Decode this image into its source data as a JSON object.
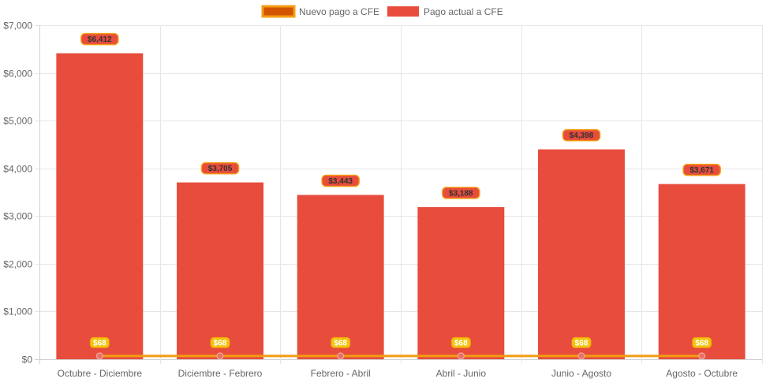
{
  "chart_data": {
    "type": "bar",
    "categories": [
      "Octubre - Diciembre",
      "Diciembre - Febrero",
      "Febrero - Abril",
      "Abril - Junio",
      "Junio - Agosto",
      "Agosto - Octubre"
    ],
    "series": [
      {
        "name": "Nuevo pago a CFE",
        "type": "line",
        "values": [
          68,
          68,
          68,
          68,
          68,
          68
        ],
        "data_labels": [
          "$68",
          "$68",
          "$68",
          "$68",
          "$68",
          "$68"
        ],
        "color": "#f39c12",
        "legend_fill": "#d35400"
      },
      {
        "name": "Pago actual a CFE",
        "type": "bar",
        "values": [
          6412,
          3705,
          3443,
          3188,
          4398,
          3671
        ],
        "data_labels": [
          "$6,412",
          "$3,705",
          "$3,443",
          "$3,188",
          "$4,398",
          "$3,671"
        ],
        "color": "#e74c3c"
      }
    ],
    "ylim": [
      0,
      7000
    ],
    "yticks": [
      0,
      1000,
      2000,
      3000,
      4000,
      5000,
      6000,
      7000
    ],
    "ytick_labels": [
      "$0",
      "$1,000",
      "$2,000",
      "$3,000",
      "$4,000",
      "$5,000",
      "$6,000",
      "$7,000"
    ],
    "grid": true,
    "legend_position": "top-center"
  }
}
